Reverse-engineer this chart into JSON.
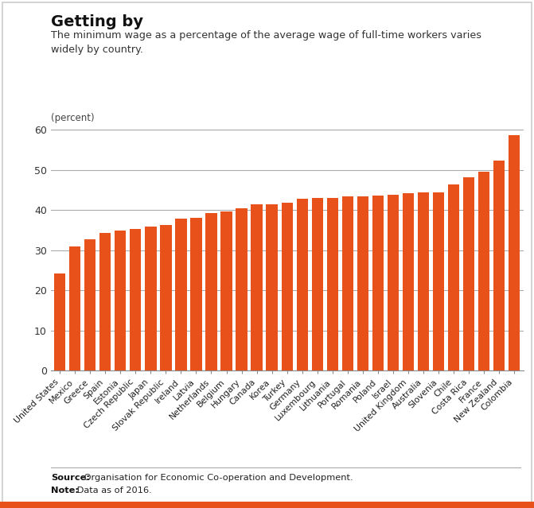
{
  "title": "Getting by",
  "subtitle": "The minimum wage as a percentage of the average wage of full-time workers varies\nwidely by country.",
  "ylabel": "(percent)",
  "bar_color": "#E8521A",
  "background_color": "#FFFFFF",
  "ylim": [
    0,
    60
  ],
  "yticks": [
    0,
    10,
    20,
    30,
    40,
    50,
    60
  ],
  "categories": [
    "United States",
    "Mexico",
    "Greece",
    "Spain",
    "Estonia",
    "Czech Republic",
    "Japan",
    "Slovak Republic",
    "Ireland",
    "Latvia",
    "Netherlands",
    "Belgium",
    "Hungary",
    "Canada",
    "Korea",
    "Turkey",
    "Germany",
    "Luxembourg",
    "Lithuania",
    "Portugal",
    "Romania",
    "Poland",
    "Israel",
    "United Kingdom",
    "Australia",
    "Slovenia",
    "Chile",
    "Costa Rica",
    "France",
    "New Zealand",
    "Colombia"
  ],
  "values": [
    24.2,
    30.9,
    32.7,
    34.2,
    34.8,
    35.2,
    35.9,
    36.2,
    37.9,
    38.0,
    39.3,
    39.7,
    40.4,
    41.4,
    41.4,
    41.9,
    42.8,
    43.0,
    43.0,
    43.3,
    43.4,
    43.5,
    43.7,
    44.2,
    44.3,
    44.3,
    46.3,
    48.2,
    49.6,
    52.2,
    58.6
  ],
  "source_bold": "Source:",
  "source_rest": " Organisation for Economic Co-operation and Development.",
  "note_bold": "Note:",
  "note_rest": " Data as of 2016."
}
